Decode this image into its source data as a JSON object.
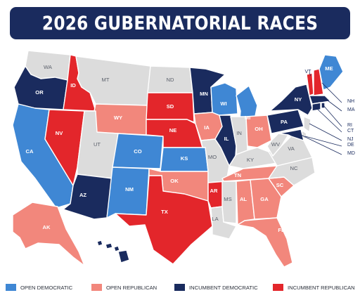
{
  "title": "2026 GUBERNATORIAL RACES",
  "colors": {
    "open_democratic": "#3f87d4",
    "open_republican": "#f2877c",
    "incumbent_democratic": "#1a2b5e",
    "incumbent_republican": "#e3262b",
    "no_race": "#dcdcdc",
    "border": "#ffffff"
  },
  "legend": [
    {
      "key": "open_democratic",
      "label": "OPEN DEMOCRATIC"
    },
    {
      "key": "open_republican",
      "label": "OPEN REPUBLICAN"
    },
    {
      "key": "incumbent_democratic",
      "label": "INCUMBENT DEMOCRATIC"
    },
    {
      "key": "incumbent_republican",
      "label": "INCUMBENT REPUBLICAN"
    }
  ],
  "states": {
    "WA": "none",
    "OR": "incumbent_democratic",
    "CA": "open_democratic",
    "ID": "incumbent_republican",
    "NV": "incumbent_republican",
    "MT": "none",
    "WY": "open_republican",
    "UT": "none",
    "AZ": "incumbent_democratic",
    "CO": "open_democratic",
    "NM": "open_democratic",
    "ND": "none",
    "SD": "incumbent_republican",
    "NE": "incumbent_republican",
    "KS": "open_democratic",
    "OK": "open_republican",
    "TX": "incumbent_republican",
    "MN": "incumbent_democratic",
    "IA": "open_republican",
    "MO": "none",
    "AR": "incumbent_republican",
    "LA": "none",
    "WI": "open_democratic",
    "IL": "incumbent_democratic",
    "MI": "open_democratic",
    "IN": "none",
    "OH": "open_republican",
    "KY": "none",
    "TN": "open_republican",
    "MS": "none",
    "AL": "open_republican",
    "GA": "open_republican",
    "FL": "open_republican",
    "SC": "open_republican",
    "NC": "none",
    "VA": "none",
    "WV": "none",
    "PA": "incumbent_democratic",
    "NY": "incumbent_democratic",
    "VT": "incumbent_republican",
    "NH": "incumbent_republican",
    "ME": "open_democratic",
    "MA": "incumbent_democratic",
    "RI": "incumbent_democratic",
    "CT": "incumbent_democratic",
    "NJ": "none",
    "DE": "none",
    "MD": "incumbent_democratic",
    "AK": "open_republican",
    "HI": "incumbent_democratic"
  }
}
